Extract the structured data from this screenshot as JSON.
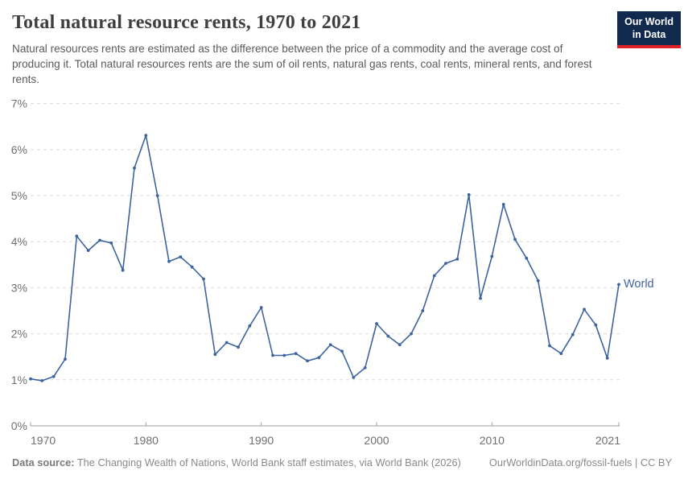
{
  "header": {
    "title": "Total natural resource rents, 1970 to 2021",
    "subtitle": "Natural resources rents are estimated as the difference between the price of a commodity and the average cost of producing it. Total natural resources rents are the sum of oil rents, natural gas rents, coal rents, mineral rents, and forest rents.",
    "logo_line1": "Our World",
    "logo_line2": "in Data"
  },
  "chart_data": {
    "type": "line",
    "title": "Total natural resource rents, 1970 to 2021",
    "xlabel": "",
    "ylabel": "",
    "x_range": [
      1970,
      2021
    ],
    "ylim": [
      0,
      7
    ],
    "grid": "horizontal-dashed",
    "legend_position": "end-of-line",
    "ytick_labels": [
      "0%",
      "1%",
      "2%",
      "3%",
      "4%",
      "5%",
      "6%",
      "7%"
    ],
    "xticks": [
      1970,
      1980,
      1990,
      2000,
      2010,
      2021
    ],
    "xtick_labels": [
      "1970",
      "1980",
      "1990",
      "2000",
      "2010",
      "2021"
    ],
    "x": [
      1970,
      1971,
      1972,
      1973,
      1974,
      1975,
      1976,
      1977,
      1978,
      1979,
      1980,
      1981,
      1982,
      1983,
      1984,
      1985,
      1986,
      1987,
      1988,
      1989,
      1990,
      1991,
      1992,
      1993,
      1994,
      1995,
      1996,
      1997,
      1998,
      1999,
      2000,
      2001,
      2002,
      2003,
      2004,
      2005,
      2006,
      2007,
      2008,
      2009,
      2010,
      2011,
      2012,
      2013,
      2014,
      2015,
      2016,
      2017,
      2018,
      2019,
      2020,
      2021
    ],
    "series": [
      {
        "name": "World",
        "unit": "%",
        "values": [
          1.02,
          0.98,
          1.07,
          1.45,
          4.12,
          3.81,
          4.03,
          3.97,
          3.38,
          5.6,
          6.31,
          5.0,
          3.57,
          3.67,
          3.45,
          3.19,
          1.55,
          1.81,
          1.71,
          2.17,
          2.57,
          1.53,
          1.53,
          1.57,
          1.41,
          1.48,
          1.76,
          1.62,
          1.05,
          1.26,
          2.22,
          1.95,
          1.76,
          2.0,
          2.5,
          3.26,
          3.53,
          3.62,
          5.02,
          2.77,
          3.68,
          4.81,
          4.05,
          3.64,
          3.15,
          1.74,
          1.57,
          1.98,
          2.53,
          2.19,
          1.47,
          3.07
        ]
      }
    ],
    "colors": {
      "line": "#3e64a0",
      "gridline": "#dadada",
      "axis": "#9e9e9e",
      "tick_text": "#6f6f6f",
      "logo_bg": "#12294e",
      "logo_accent": "#dc2127"
    }
  },
  "footer": {
    "source_label": "Data source:",
    "source_text": " The Changing Wealth of Nations, World Bank staff estimates, via World Bank (2026)",
    "url": "OurWorldinData.org/fossil-fuels",
    "divider": " | ",
    "license": "CC BY"
  }
}
